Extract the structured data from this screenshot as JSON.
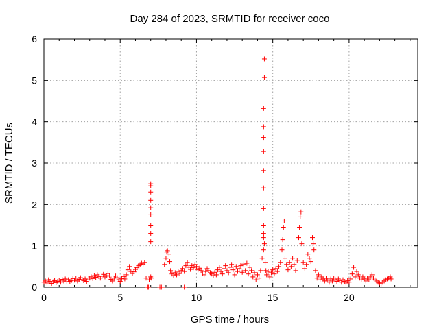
{
  "chart_data": {
    "type": "scatter",
    "title": "Day 284 of 2023, SRMTID for receiver coco",
    "xlabel": "GPS time / hours",
    "ylabel": "SRMTID / TECUs",
    "xlim": [
      0,
      24.5
    ],
    "ylim": [
      0,
      6
    ],
    "x_ticks": [
      0,
      5,
      10,
      15,
      20
    ],
    "y_ticks": [
      0,
      1,
      2,
      3,
      4,
      5,
      6
    ],
    "grid": true,
    "marker": "+",
    "series": [
      {
        "name": "SRMTID",
        "color": "#ff0000",
        "points": [
          [
            0.0,
            0.12
          ],
          [
            0.1,
            0.15
          ],
          [
            0.2,
            0.1
          ],
          [
            0.3,
            0.18
          ],
          [
            0.4,
            0.14
          ],
          [
            0.5,
            0.09
          ],
          [
            0.6,
            0.13
          ],
          [
            0.7,
            0.16
          ],
          [
            0.8,
            0.11
          ],
          [
            0.9,
            0.14
          ],
          [
            1.0,
            0.17
          ],
          [
            1.1,
            0.12
          ],
          [
            1.2,
            0.19
          ],
          [
            1.3,
            0.15
          ],
          [
            1.4,
            0.2
          ],
          [
            1.5,
            0.13
          ],
          [
            1.6,
            0.18
          ],
          [
            1.7,
            0.14
          ],
          [
            1.8,
            0.16
          ],
          [
            1.9,
            0.21
          ],
          [
            2.0,
            0.17
          ],
          [
            2.1,
            0.22
          ],
          [
            2.2,
            0.15
          ],
          [
            2.3,
            0.19
          ],
          [
            2.4,
            0.23
          ],
          [
            2.5,
            0.18
          ],
          [
            2.6,
            0.16
          ],
          [
            2.7,
            0.2
          ],
          [
            2.8,
            0.14
          ],
          [
            2.9,
            0.18
          ],
          [
            3.0,
            0.22
          ],
          [
            3.1,
            0.25
          ],
          [
            3.2,
            0.21
          ],
          [
            3.3,
            0.28
          ],
          [
            3.4,
            0.24
          ],
          [
            3.5,
            0.3
          ],
          [
            3.6,
            0.26
          ],
          [
            3.7,
            0.22
          ],
          [
            3.8,
            0.27
          ],
          [
            3.9,
            0.31
          ],
          [
            4.0,
            0.25
          ],
          [
            4.1,
            0.28
          ],
          [
            4.2,
            0.33
          ],
          [
            4.3,
            0.27
          ],
          [
            4.4,
            0.19
          ],
          [
            4.5,
            0.15
          ],
          [
            4.6,
            0.22
          ],
          [
            4.7,
            0.27
          ],
          [
            4.8,
            0.23
          ],
          [
            4.9,
            0.18
          ],
          [
            5.0,
            0.14
          ],
          [
            5.1,
            0.21
          ],
          [
            5.2,
            0.26
          ],
          [
            5.3,
            0.2
          ],
          [
            5.4,
            0.3
          ],
          [
            5.5,
            0.42
          ],
          [
            5.6,
            0.5
          ],
          [
            5.7,
            0.38
          ],
          [
            5.8,
            0.33
          ],
          [
            5.9,
            0.37
          ],
          [
            6.0,
            0.43
          ],
          [
            6.1,
            0.47
          ],
          [
            6.2,
            0.52
          ],
          [
            6.3,
            0.55
          ],
          [
            6.4,
            0.58
          ],
          [
            6.5,
            0.56
          ],
          [
            6.6,
            0.6
          ],
          [
            6.7,
            0.22
          ],
          [
            6.8,
            0.0
          ],
          [
            6.85,
            0.0
          ],
          [
            6.9,
            0.18
          ],
          [
            7.0,
            0.25
          ],
          [
            7.05,
            0.22
          ],
          [
            7.0,
            1.1
          ],
          [
            7.0,
            1.3
          ],
          [
            7.0,
            1.5
          ],
          [
            7.0,
            1.75
          ],
          [
            7.0,
            1.92
          ],
          [
            7.0,
            2.1
          ],
          [
            7.0,
            2.3
          ],
          [
            7.0,
            2.45
          ],
          [
            7.0,
            2.5
          ],
          [
            7.6,
            0.0
          ],
          [
            7.7,
            0.0
          ],
          [
            7.8,
            0.0
          ],
          [
            7.9,
            0.55
          ],
          [
            8.0,
            0.7
          ],
          [
            8.05,
            0.85
          ],
          [
            8.1,
            0.88
          ],
          [
            8.2,
            0.8
          ],
          [
            8.25,
            0.62
          ],
          [
            8.3,
            0.4
          ],
          [
            8.4,
            0.32
          ],
          [
            8.5,
            0.28
          ],
          [
            8.6,
            0.35
          ],
          [
            8.7,
            0.3
          ],
          [
            8.8,
            0.38
          ],
          [
            8.9,
            0.33
          ],
          [
            9.0,
            0.4
          ],
          [
            9.1,
            0.45
          ],
          [
            9.2,
            0.38
          ],
          [
            9.3,
            0.52
          ],
          [
            9.4,
            0.6
          ],
          [
            9.5,
            0.48
          ],
          [
            9.2,
            0.0
          ],
          [
            9.6,
            0.43
          ],
          [
            9.7,
            0.52
          ],
          [
            9.8,
            0.47
          ],
          [
            9.9,
            0.55
          ],
          [
            10.0,
            0.5
          ],
          [
            10.1,
            0.42
          ],
          [
            10.2,
            0.46
          ],
          [
            10.3,
            0.4
          ],
          [
            10.4,
            0.34
          ],
          [
            10.5,
            0.3
          ],
          [
            10.6,
            0.38
          ],
          [
            10.7,
            0.45
          ],
          [
            10.8,
            0.4
          ],
          [
            10.9,
            0.35
          ],
          [
            11.0,
            0.32
          ],
          [
            11.1,
            0.28
          ],
          [
            11.2,
            0.36
          ],
          [
            11.3,
            0.3
          ],
          [
            11.4,
            0.42
          ],
          [
            11.5,
            0.48
          ],
          [
            11.6,
            0.38
          ],
          [
            11.7,
            0.32
          ],
          [
            11.8,
            0.45
          ],
          [
            11.9,
            0.52
          ],
          [
            12.0,
            0.4
          ],
          [
            12.1,
            0.35
          ],
          [
            12.2,
            0.48
          ],
          [
            12.3,
            0.55
          ],
          [
            12.4,
            0.42
          ],
          [
            12.5,
            0.3
          ],
          [
            12.6,
            0.5
          ],
          [
            12.7,
            0.38
          ],
          [
            12.8,
            0.45
          ],
          [
            12.9,
            0.52
          ],
          [
            13.0,
            0.36
          ],
          [
            13.1,
            0.56
          ],
          [
            13.2,
            0.4
          ],
          [
            13.3,
            0.58
          ],
          [
            13.4,
            0.32
          ],
          [
            13.5,
            0.48
          ],
          [
            13.6,
            0.4
          ],
          [
            13.7,
            0.25
          ],
          [
            13.8,
            0.35
          ],
          [
            13.9,
            0.18
          ],
          [
            14.0,
            0.3
          ],
          [
            14.1,
            0.22
          ],
          [
            14.2,
            0.4
          ],
          [
            14.3,
            0.7
          ],
          [
            14.4,
            0.9
          ],
          [
            14.45,
            1.05
          ],
          [
            14.4,
            1.2
          ],
          [
            14.4,
            1.3
          ],
          [
            14.5,
            0.6
          ],
          [
            14.55,
            0.4
          ],
          [
            14.6,
            0.3
          ],
          [
            14.7,
            0.38
          ],
          [
            14.8,
            0.25
          ],
          [
            14.9,
            0.35
          ],
          [
            15.0,
            0.42
          ],
          [
            15.1,
            0.32
          ],
          [
            14.4,
            1.5
          ],
          [
            14.4,
            1.9
          ],
          [
            14.4,
            2.4
          ],
          [
            14.4,
            2.82
          ],
          [
            14.4,
            3.28
          ],
          [
            14.4,
            3.62
          ],
          [
            14.4,
            3.88
          ],
          [
            14.4,
            4.32
          ],
          [
            14.45,
            5.07
          ],
          [
            14.45,
            5.52
          ],
          [
            15.2,
            0.45
          ],
          [
            15.3,
            0.38
          ],
          [
            15.4,
            0.5
          ],
          [
            15.5,
            0.6
          ],
          [
            15.6,
            0.9
          ],
          [
            15.65,
            1.15
          ],
          [
            15.7,
            1.45
          ],
          [
            15.75,
            1.6
          ],
          [
            15.8,
            0.7
          ],
          [
            15.9,
            0.55
          ],
          [
            16.0,
            0.42
          ],
          [
            16.1,
            0.6
          ],
          [
            16.2,
            0.5
          ],
          [
            16.3,
            0.7
          ],
          [
            16.4,
            0.55
          ],
          [
            16.5,
            0.4
          ],
          [
            16.6,
            0.65
          ],
          [
            16.7,
            1.2
          ],
          [
            16.75,
            1.45
          ],
          [
            16.8,
            1.7
          ],
          [
            16.85,
            1.82
          ],
          [
            16.9,
            1.05
          ],
          [
            17.0,
            0.6
          ],
          [
            17.1,
            0.45
          ],
          [
            17.2,
            0.55
          ],
          [
            17.3,
            0.8
          ],
          [
            17.4,
            0.7
          ],
          [
            17.5,
            0.62
          ],
          [
            17.6,
            1.2
          ],
          [
            17.65,
            1.05
          ],
          [
            17.7,
            0.9
          ],
          [
            17.8,
            0.4
          ],
          [
            17.9,
            0.22
          ],
          [
            18.0,
            0.3
          ],
          [
            18.1,
            0.18
          ],
          [
            18.2,
            0.25
          ],
          [
            18.3,
            0.2
          ],
          [
            18.4,
            0.15
          ],
          [
            18.5,
            0.22
          ],
          [
            18.6,
            0.17
          ],
          [
            18.7,
            0.12
          ],
          [
            18.8,
            0.2
          ],
          [
            18.9,
            0.15
          ],
          [
            19.0,
            0.22
          ],
          [
            19.1,
            0.18
          ],
          [
            19.2,
            0.14
          ],
          [
            19.3,
            0.2
          ],
          [
            19.4,
            0.16
          ],
          [
            19.5,
            0.12
          ],
          [
            19.6,
            0.18
          ],
          [
            19.7,
            0.14
          ],
          [
            19.8,
            0.1
          ],
          [
            19.9,
            0.16
          ],
          [
            20.0,
            0.12
          ],
          [
            20.1,
            0.2
          ],
          [
            20.2,
            0.32
          ],
          [
            20.3,
            0.48
          ],
          [
            20.4,
            0.25
          ],
          [
            20.5,
            0.38
          ],
          [
            20.6,
            0.3
          ],
          [
            20.7,
            0.22
          ],
          [
            20.8,
            0.18
          ],
          [
            20.9,
            0.25
          ],
          [
            21.0,
            0.2
          ],
          [
            21.1,
            0.15
          ],
          [
            21.2,
            0.22
          ],
          [
            21.3,
            0.18
          ],
          [
            21.4,
            0.25
          ],
          [
            21.5,
            0.3
          ],
          [
            21.6,
            0.22
          ],
          [
            21.7,
            0.18
          ],
          [
            21.8,
            0.15
          ],
          [
            21.9,
            0.12
          ],
          [
            22.0,
            0.1
          ],
          [
            22.1,
            0.08
          ],
          [
            22.2,
            0.12
          ],
          [
            22.3,
            0.15
          ],
          [
            22.4,
            0.18
          ],
          [
            22.5,
            0.2
          ],
          [
            22.6,
            0.22
          ],
          [
            22.7,
            0.25
          ],
          [
            22.75,
            0.2
          ]
        ]
      }
    ]
  }
}
